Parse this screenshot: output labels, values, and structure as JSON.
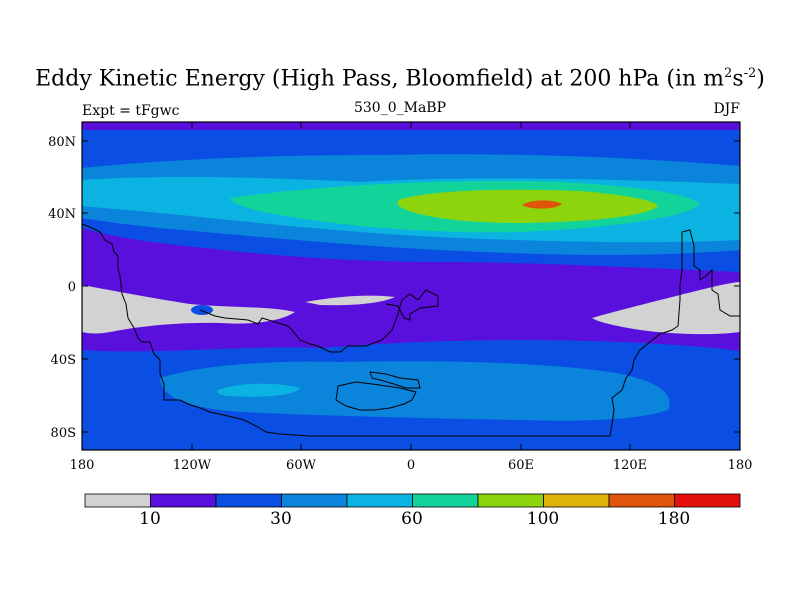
{
  "title": {
    "main": "Eddy Kinetic Energy (High Pass, Bloomfield) at 200 hPa (in m",
    "sup1": "2",
    "mid": "s",
    "sup2": "-2",
    "end": ")"
  },
  "experiment_label": "Expt = tFgwc",
  "run_label": "530_0_MaBP",
  "season_label": "DJF",
  "lat_ticks": [
    "80N",
    "40N",
    "0",
    "40S",
    "80S"
  ],
  "lon_ticks": [
    "180",
    "120W",
    "60W",
    "0",
    "60E",
    "120E",
    "180"
  ],
  "colorbar": {
    "colors": [
      "#d2d2d2",
      "#5a10dc",
      "#0a4ee4",
      "#0b84dc",
      "#0bb3e2",
      "#12d39a",
      "#8ed40c",
      "#e0b30b",
      "#e0540c",
      "#e4100c"
    ],
    "labels": [
      "10",
      "30",
      "60",
      "100",
      "180"
    ]
  },
  "chart_data": {
    "type": "heatmap",
    "variable": "Eddy Kinetic Energy (High Pass, Bloomfield)",
    "level": "200 hPa",
    "units": "m2 s-2",
    "season": "DJF",
    "experiment": "tFgwc",
    "run": "530_0_MaBP",
    "lat_range": [
      -90,
      90
    ],
    "lon_range": [
      -180,
      180
    ],
    "colorbar_labels": [
      10,
      30,
      60,
      100,
      180
    ]
  }
}
